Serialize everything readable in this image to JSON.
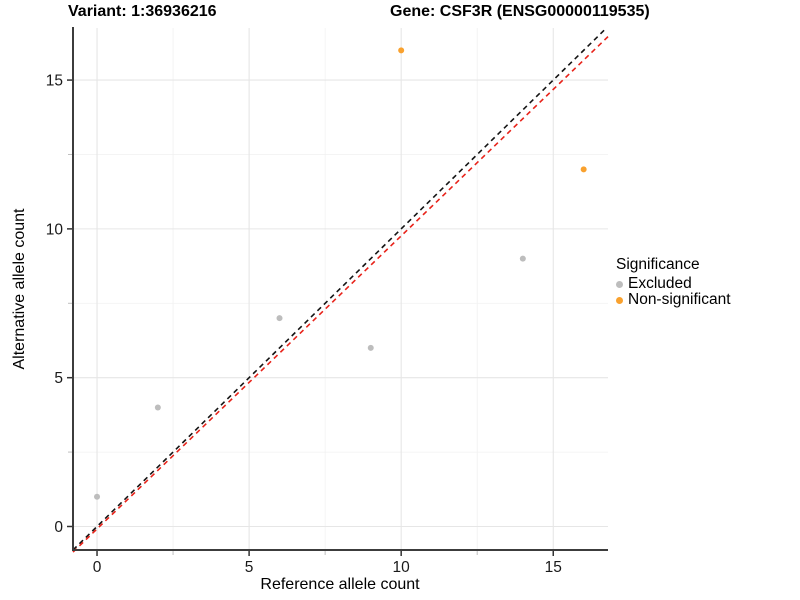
{
  "title": {
    "variant": "Variant: 1:36936216",
    "gene": "Gene: CSF3R (ENSG00000119535)"
  },
  "axes": {
    "x_label": "Reference allele count",
    "y_label": "Alternative allele count",
    "x_ticks": [
      0,
      5,
      10,
      15
    ],
    "y_ticks": [
      0,
      5,
      10,
      15
    ],
    "x_minor_ticks": [
      2.5,
      7.5,
      12.5
    ],
    "y_minor_ticks": [
      2.5,
      7.5,
      12.5
    ]
  },
  "legend": {
    "title": "Significance",
    "items": [
      {
        "label": "Excluded",
        "color": "#bdbdbd"
      },
      {
        "label": "Non-significant",
        "color": "#f9a12e"
      }
    ]
  },
  "chart_data": {
    "type": "scatter",
    "title": "Variant: 1:36936216 | Gene: CSF3R (ENSG00000119535)",
    "xlabel": "Reference allele count",
    "ylabel": "Alternative allele count",
    "xlim": [
      -0.79,
      16.8
    ],
    "ylim": [
      -0.79,
      16.75
    ],
    "grid": {
      "major": [
        0,
        5,
        10,
        15
      ],
      "minor": [
        2.5,
        7.5,
        12.5
      ],
      "color_major": "#e6e6e6",
      "color_minor": "#f1f1f1"
    },
    "series": [
      {
        "name": "Excluded",
        "color": "#bdbdbd",
        "points": [
          [
            0,
            1
          ],
          [
            2,
            4
          ],
          [
            6,
            7
          ],
          [
            9,
            6
          ],
          [
            14,
            9
          ]
        ]
      },
      {
        "name": "Non-significant",
        "color": "#f9a12e",
        "points": [
          [
            10,
            16
          ],
          [
            16,
            12
          ]
        ]
      }
    ],
    "lines": [
      {
        "name": "identity-line",
        "style": "dashed",
        "color": "#141414",
        "from": [
          -0.79,
          -0.79
        ],
        "to": [
          16.73,
          16.73
        ]
      },
      {
        "name": "fit-line",
        "style": "dashed",
        "color": "#e8231a",
        "from": [
          -0.79,
          -0.86
        ],
        "to": [
          16.8,
          16.46
        ]
      }
    ],
    "point_radius": 3,
    "axis_color": "#3c3c3c",
    "tick_label_color": "#1a1a1a"
  }
}
